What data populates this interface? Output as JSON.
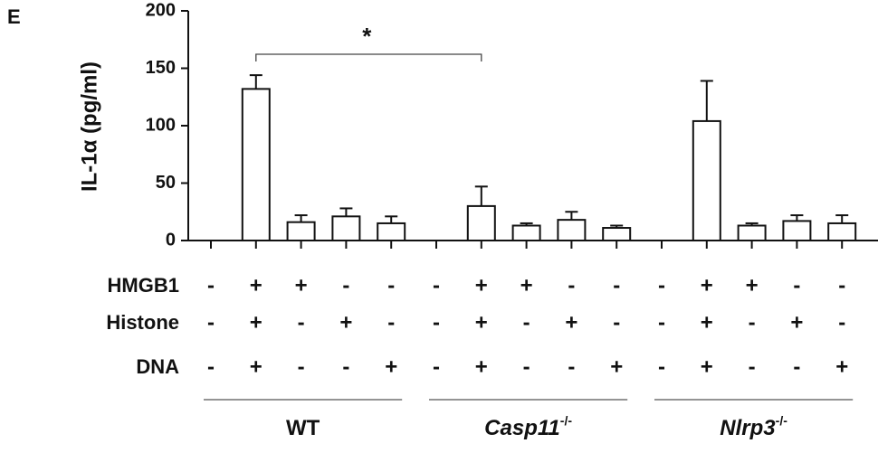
{
  "chart_data": {
    "type": "bar",
    "panel_label": "E",
    "y_label": "IL-1α (pg/ml)",
    "categories": [
      null,
      null,
      null,
      null,
      null,
      null,
      null,
      null,
      null,
      null,
      null,
      null,
      null,
      null,
      null
    ],
    "values": [
      0,
      132,
      16,
      21,
      15,
      0,
      30,
      13,
      18,
      11,
      0,
      104,
      13,
      17,
      15
    ],
    "errors": [
      0,
      12,
      6,
      7,
      6,
      0,
      17,
      2,
      7,
      2,
      0,
      35,
      2,
      5,
      7
    ],
    "color": "#ffffff",
    "edge_color": "#111111",
    "ylim": [
      0,
      200
    ],
    "yticks": [
      0,
      50,
      100,
      150,
      200
    ],
    "annotation": {
      "text": "*",
      "from": 1,
      "to": 6
    },
    "treatments": [
      {
        "name": "HMGB1",
        "signs": [
          "-",
          "+",
          "+",
          "-",
          "-",
          "-",
          "+",
          "+",
          "-",
          "-",
          "-",
          "+",
          "+",
          "-",
          "-"
        ]
      },
      {
        "name": "Histone",
        "signs": [
          "-",
          "+",
          "-",
          "+",
          "-",
          "-",
          "+",
          "-",
          "+",
          "-",
          "-",
          "+",
          "-",
          "+",
          "-"
        ]
      },
      {
        "name": "DNA",
        "signs": [
          "-",
          "+",
          "-",
          "-",
          "+",
          "-",
          "+",
          "-",
          "-",
          "+",
          "-",
          "+",
          "-",
          "-",
          "+"
        ]
      }
    ],
    "groups": [
      {
        "name": "WT"
      },
      {
        "name": "Casp11",
        "sup": "-/-"
      },
      {
        "name": "Nlrp3",
        "sup": "-/-"
      }
    ]
  }
}
